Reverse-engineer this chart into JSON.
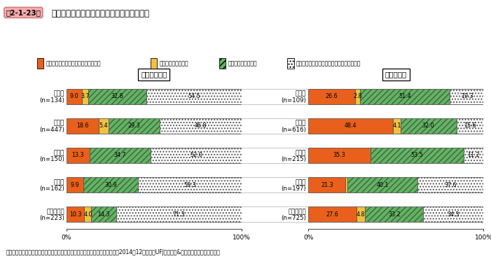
{
  "title_box": "第2-1-23図",
  "subtitle": "　企業規模別、業種別に見た組織体制の状況",
  "legend_labels": [
    "営業・販売部門と企画・開発部門あり",
    "企画・開発部門のみ",
    "営業・販売部門のみ",
    "営業・販売部門、企画・開発部門ともになし"
  ],
  "small_title": "小規模事業者",
  "large_title": "中規模企業",
  "small_categories": [
    "建設業\n(n=134)",
    "製造業\n(n=447)",
    "卸売業\n(n=150)",
    "小売業\n(n=162)",
    "サービス業\n(n=223)"
  ],
  "large_categories": [
    "建設業\n(n=109)",
    "製造業\n(n=616)",
    "卸売業\n(n=215)",
    "小売業\n(n=197)",
    "サービス業\n(n=725)"
  ],
  "small_data": [
    [
      9.0,
      3.7,
      32.8,
      54.5
    ],
    [
      18.6,
      5.4,
      29.3,
      46.8
    ],
    [
      13.3,
      0.0,
      34.7,
      52.0
    ],
    [
      9.9,
      0.0,
      30.9,
      59.3
    ],
    [
      10.3,
      4.0,
      14.3,
      71.3
    ]
  ],
  "large_data": [
    [
      26.6,
      2.8,
      51.4,
      19.3
    ],
    [
      48.4,
      4.1,
      32.0,
      15.6
    ],
    [
      35.3,
      0.0,
      53.5,
      11.2
    ],
    [
      21.3,
      1.0,
      40.1,
      37.6
    ],
    [
      27.6,
      4.8,
      33.2,
      34.3
    ]
  ],
  "source": "資料：中小企業庁委託「「市場開拓」と「新たな取り組み」に関する調査」（2014年12月、三菱UFJリサーチ&コンサルティング（株））",
  "colors": [
    "#E8601C",
    "#F0C040",
    "#5CB85C",
    "#FFFFFF"
  ],
  "hatch_patterns": [
    "",
    "",
    "////",
    "...."
  ],
  "bar_edge_color": "#555555",
  "title_box_bg": "#F4ABAB",
  "title_box_edge": "#CC6666"
}
